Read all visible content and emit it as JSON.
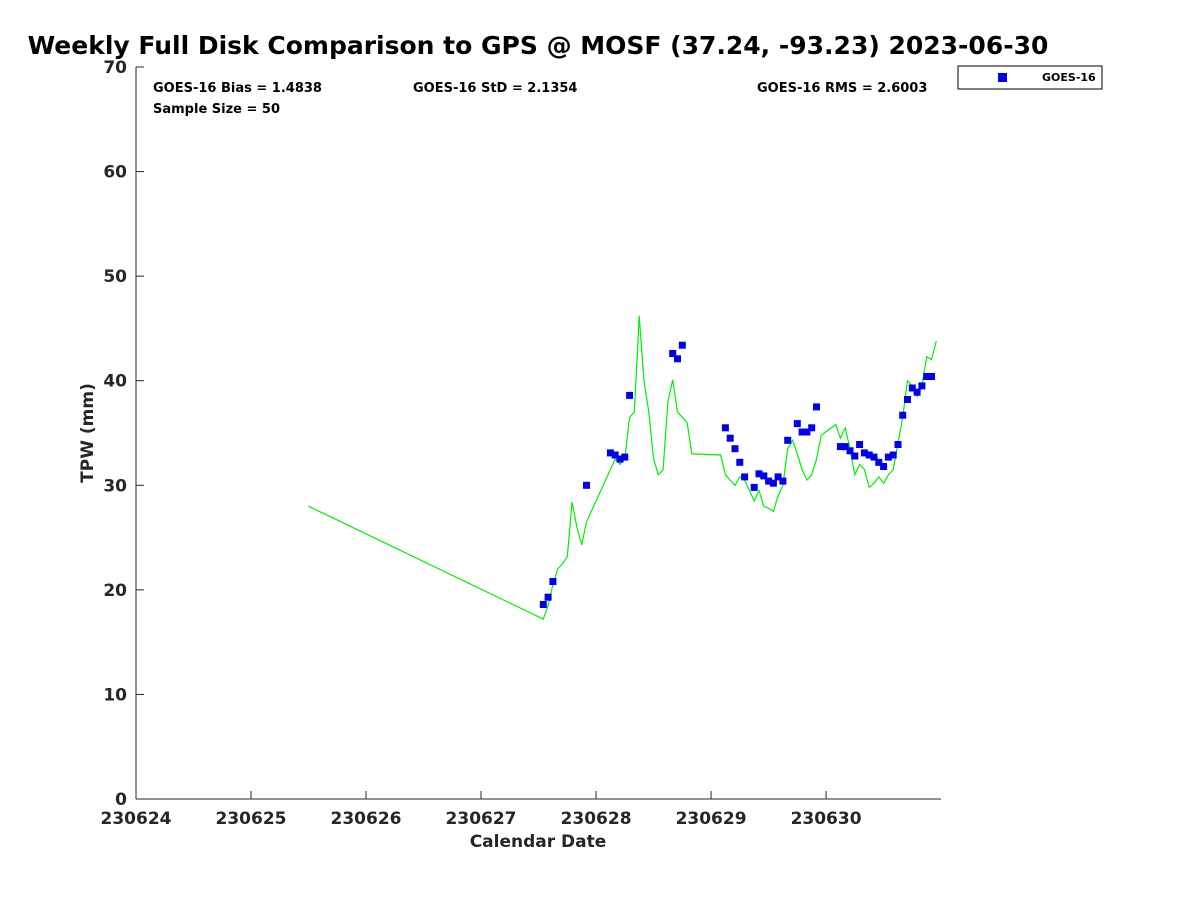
{
  "chart_data": {
    "type": "scatter",
    "title": "Weekly Full Disk Comparison to GPS @ MOSF (37.24, -93.23) 2023-06-30",
    "xlabel": "Calendar Date",
    "ylabel": "TPW (mm)",
    "xlim": [
      "2023-06-24",
      "2023-06-30T23:59"
    ],
    "ylim": [
      0,
      70
    ],
    "x_ticks": [
      {
        "date": "2023-06-24",
        "label": "230624"
      },
      {
        "date": "2023-06-25",
        "label": "230625"
      },
      {
        "date": "2023-06-26",
        "label": "230626"
      },
      {
        "date": "2023-06-27",
        "label": "230627"
      },
      {
        "date": "2023-06-28",
        "label": "230628"
      },
      {
        "date": "2023-06-29",
        "label": "230629"
      },
      {
        "date": "2023-06-30",
        "label": "230630"
      }
    ],
    "y_ticks": [
      0,
      10,
      20,
      30,
      40,
      50,
      60,
      70
    ],
    "grid": false,
    "legend_position": "top-right, outside plot",
    "stats": {
      "bias": "GOES-16 Bias = 1.4838",
      "std": "GOES-16 StD = 2.1354",
      "rms": "GOES-16 RMS = 2.6003",
      "sample": "Sample Size = 50"
    },
    "series": [
      {
        "name": "GOES-16",
        "kind": "scatter",
        "color": "#0000ee",
        "legend": true,
        "points": [
          [
            "2023-06-27T13:00",
            18.6
          ],
          [
            "2023-06-27T14:00",
            19.3
          ],
          [
            "2023-06-27T15:00",
            20.8
          ],
          [
            "2023-06-27T22:00",
            30.0
          ],
          [
            "2023-06-28T03:00",
            33.1
          ],
          [
            "2023-06-28T04:00",
            32.9
          ],
          [
            "2023-06-28T05:00",
            32.5
          ],
          [
            "2023-06-28T06:00",
            32.7
          ],
          [
            "2023-06-28T07:00",
            38.6
          ],
          [
            "2023-06-28T16:00",
            42.6
          ],
          [
            "2023-06-28T17:00",
            42.1
          ],
          [
            "2023-06-28T18:00",
            43.4
          ],
          [
            "2023-06-29T03:00",
            35.5
          ],
          [
            "2023-06-29T04:00",
            34.5
          ],
          [
            "2023-06-29T05:00",
            33.5
          ],
          [
            "2023-06-29T06:00",
            32.2
          ],
          [
            "2023-06-29T07:00",
            30.8
          ],
          [
            "2023-06-29T09:00",
            29.8
          ],
          [
            "2023-06-29T10:00",
            31.1
          ],
          [
            "2023-06-29T11:00",
            30.9
          ],
          [
            "2023-06-29T12:00",
            30.4
          ],
          [
            "2023-06-29T13:00",
            30.2
          ],
          [
            "2023-06-29T14:00",
            30.8
          ],
          [
            "2023-06-29T15:00",
            30.4
          ],
          [
            "2023-06-29T16:00",
            34.3
          ],
          [
            "2023-06-29T18:00",
            35.9
          ],
          [
            "2023-06-29T19:00",
            35.1
          ],
          [
            "2023-06-29T20:00",
            35.1
          ],
          [
            "2023-06-29T21:00",
            35.5
          ],
          [
            "2023-06-29T22:00",
            37.5
          ],
          [
            "2023-06-30T03:00",
            33.7
          ],
          [
            "2023-06-30T04:00",
            33.7
          ],
          [
            "2023-06-30T05:00",
            33.3
          ],
          [
            "2023-06-30T06:00",
            32.8
          ],
          [
            "2023-06-30T07:00",
            33.9
          ],
          [
            "2023-06-30T08:00",
            33.1
          ],
          [
            "2023-06-30T09:00",
            32.9
          ],
          [
            "2023-06-30T10:00",
            32.7
          ],
          [
            "2023-06-30T11:00",
            32.2
          ],
          [
            "2023-06-30T12:00",
            31.8
          ],
          [
            "2023-06-30T13:00",
            32.7
          ],
          [
            "2023-06-30T14:00",
            32.9
          ],
          [
            "2023-06-30T15:00",
            33.9
          ],
          [
            "2023-06-30T16:00",
            36.7
          ],
          [
            "2023-06-30T17:00",
            38.2
          ],
          [
            "2023-06-30T18:00",
            39.3
          ],
          [
            "2023-06-30T19:00",
            38.9
          ],
          [
            "2023-06-30T20:00",
            39.5
          ],
          [
            "2023-06-30T21:00",
            40.4
          ],
          [
            "2023-06-30T22:00",
            40.4
          ]
        ]
      },
      {
        "kind": "line",
        "color": "#00ee00",
        "legend": false,
        "points": [
          [
            "2023-06-25T12:00",
            28.0
          ],
          [
            "2023-06-27T13:00",
            17.2
          ],
          [
            "2023-06-27T14:00",
            18.5
          ],
          [
            "2023-06-27T15:00",
            20.5
          ],
          [
            "2023-06-27T16:00",
            22.0
          ],
          [
            "2023-06-27T17:00",
            22.5
          ],
          [
            "2023-06-27T18:00",
            23.2
          ],
          [
            "2023-06-27T19:00",
            28.4
          ],
          [
            "2023-06-27T20:00",
            26.0
          ],
          [
            "2023-06-27T21:00",
            24.3
          ],
          [
            "2023-06-27T22:00",
            26.5
          ],
          [
            "2023-06-27T23:00",
            27.5
          ],
          [
            "2023-06-28T00:00",
            28.5
          ],
          [
            "2023-06-28T01:00",
            29.5
          ],
          [
            "2023-06-28T02:00",
            30.5
          ],
          [
            "2023-06-28T03:00",
            31.5
          ],
          [
            "2023-06-28T04:00",
            32.5
          ],
          [
            "2023-06-28T05:00",
            32.0
          ],
          [
            "2023-06-28T06:00",
            32.5
          ],
          [
            "2023-06-28T07:00",
            36.5
          ],
          [
            "2023-06-28T08:00",
            37.0
          ],
          [
            "2023-06-28T09:00",
            46.2
          ],
          [
            "2023-06-28T10:00",
            40.0
          ],
          [
            "2023-06-28T11:00",
            37.0
          ],
          [
            "2023-06-28T12:00",
            32.5
          ],
          [
            "2023-06-28T13:00",
            31.0
          ],
          [
            "2023-06-28T14:00",
            31.5
          ],
          [
            "2023-06-28T15:00",
            38.0
          ],
          [
            "2023-06-28T16:00",
            40.1
          ],
          [
            "2023-06-28T17:00",
            37.0
          ],
          [
            "2023-06-28T18:00",
            36.5
          ],
          [
            "2023-06-28T19:00",
            36.0
          ],
          [
            "2023-06-28T20:00",
            33.0
          ],
          [
            "2023-06-29T02:00",
            32.9
          ],
          [
            "2023-06-29T03:00",
            31.0
          ],
          [
            "2023-06-29T04:00",
            30.5
          ],
          [
            "2023-06-29T05:00",
            30.0
          ],
          [
            "2023-06-29T06:00",
            30.8
          ],
          [
            "2023-06-29T07:00",
            30.5
          ],
          [
            "2023-06-29T08:00",
            29.5
          ],
          [
            "2023-06-29T09:00",
            28.5
          ],
          [
            "2023-06-29T10:00",
            29.5
          ],
          [
            "2023-06-29T11:00",
            28.0
          ],
          [
            "2023-06-29T12:00",
            27.8
          ],
          [
            "2023-06-29T13:00",
            27.5
          ],
          [
            "2023-06-29T14:00",
            29.0
          ],
          [
            "2023-06-29T15:00",
            30.0
          ],
          [
            "2023-06-29T16:00",
            33.5
          ],
          [
            "2023-06-29T17:00",
            34.3
          ],
          [
            "2023-06-29T18:00",
            33.0
          ],
          [
            "2023-06-29T19:00",
            31.5
          ],
          [
            "2023-06-29T20:00",
            30.5
          ],
          [
            "2023-06-29T21:00",
            31.0
          ],
          [
            "2023-06-29T22:00",
            32.5
          ],
          [
            "2023-06-29T23:00",
            34.8
          ],
          [
            "2023-06-30T02:00",
            35.8
          ],
          [
            "2023-06-30T03:00",
            34.5
          ],
          [
            "2023-06-30T04:00",
            35.5
          ],
          [
            "2023-06-30T05:00",
            33.5
          ],
          [
            "2023-06-30T06:00",
            31.0
          ],
          [
            "2023-06-30T07:00",
            32.0
          ],
          [
            "2023-06-30T08:00",
            31.5
          ],
          [
            "2023-06-30T09:00",
            29.8
          ],
          [
            "2023-06-30T10:00",
            30.2
          ],
          [
            "2023-06-30T11:00",
            30.8
          ],
          [
            "2023-06-30T12:00",
            30.2
          ],
          [
            "2023-06-30T13:00",
            31.0
          ],
          [
            "2023-06-30T14:00",
            31.5
          ],
          [
            "2023-06-30T15:00",
            34.0
          ],
          [
            "2023-06-30T16:00",
            36.5
          ],
          [
            "2023-06-30T17:00",
            40.0
          ],
          [
            "2023-06-30T18:00",
            39.5
          ],
          [
            "2023-06-30T19:00",
            38.5
          ],
          [
            "2023-06-30T20:00",
            39.5
          ],
          [
            "2023-06-30T21:00",
            42.3
          ],
          [
            "2023-06-30T22:00",
            42.0
          ],
          [
            "2023-06-30T23:00",
            43.8
          ]
        ]
      }
    ]
  }
}
